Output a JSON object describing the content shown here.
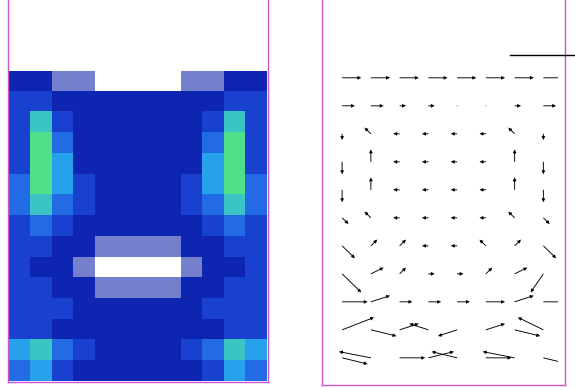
{
  "chart_data": [
    {
      "type": "heatmap",
      "tick_labels": false,
      "cells": [
        [
          2,
          2,
          1,
          1,
          0,
          0,
          0,
          0,
          1,
          1,
          2,
          2
        ],
        [
          3,
          3,
          2,
          2,
          2,
          2,
          2,
          2,
          2,
          2,
          3,
          3
        ],
        [
          3,
          6,
          3,
          2,
          2,
          2,
          2,
          2,
          2,
          3,
          6,
          3
        ],
        [
          3,
          7,
          4,
          2,
          2,
          2,
          2,
          2,
          2,
          4,
          7,
          3
        ],
        [
          3,
          7,
          5,
          2,
          2,
          2,
          2,
          2,
          2,
          5,
          7,
          3
        ],
        [
          4,
          7,
          5,
          3,
          2,
          2,
          2,
          2,
          3,
          5,
          7,
          4
        ],
        [
          4,
          6,
          4,
          3,
          2,
          2,
          2,
          2,
          3,
          4,
          6,
          4
        ],
        [
          3,
          4,
          3,
          2,
          2,
          2,
          2,
          2,
          2,
          3,
          4,
          3
        ],
        [
          3,
          3,
          2,
          2,
          1,
          1,
          1,
          1,
          2,
          2,
          3,
          3
        ],
        [
          3,
          2,
          2,
          1,
          0,
          0,
          0,
          0,
          1,
          2,
          2,
          3
        ],
        [
          3,
          3,
          2,
          2,
          1,
          1,
          1,
          1,
          2,
          2,
          3,
          3
        ],
        [
          3,
          3,
          3,
          2,
          2,
          2,
          2,
          2,
          2,
          3,
          3,
          3
        ],
        [
          3,
          3,
          2,
          2,
          2,
          2,
          2,
          2,
          2,
          2,
          3,
          3
        ],
        [
          5,
          6,
          4,
          3,
          2,
          2,
          2,
          2,
          3,
          4,
          6,
          5
        ],
        [
          4,
          5,
          3,
          2,
          2,
          2,
          2,
          2,
          2,
          3,
          5,
          4
        ]
      ]
    },
    {
      "type": "quiver",
      "tick_labels": false,
      "u": [
        [
          3,
          3,
          3,
          3,
          3,
          3,
          3,
          3
        ],
        [
          2,
          2,
          1,
          1,
          0,
          0,
          1,
          2
        ],
        [
          0,
          -1,
          -1,
          -1,
          -1,
          -1,
          -1,
          0
        ],
        [
          0,
          0,
          -1,
          -1,
          -1,
          -1,
          0,
          0
        ],
        [
          0,
          0,
          -1,
          -1,
          -1,
          -1,
          0,
          0
        ],
        [
          1,
          -1,
          -1,
          -1,
          -1,
          -1,
          -1,
          1
        ],
        [
          2,
          1,
          1,
          -1,
          -1,
          -1,
          1,
          2
        ],
        [
          3,
          2,
          1,
          1,
          1,
          1,
          2,
          -2
        ],
        [
          4,
          3,
          2,
          2,
          2,
          3,
          3,
          4
        ],
        [
          5,
          4,
          3,
          -3,
          -3,
          3,
          4,
          -4
        ],
        [
          4,
          -5,
          4,
          4,
          -4,
          4,
          -5,
          4
        ]
      ],
      "v": [
        [
          0,
          0,
          0,
          0,
          0,
          0,
          0,
          0
        ],
        [
          0,
          0,
          0,
          0,
          0,
          0,
          0,
          0
        ],
        [
          -1,
          1,
          0,
          0,
          0,
          0,
          1,
          -1
        ],
        [
          -2,
          2,
          0,
          0,
          0,
          0,
          2,
          -2
        ],
        [
          -2,
          2,
          0,
          0,
          0,
          0,
          2,
          -2
        ],
        [
          -1,
          1,
          0,
          0,
          0,
          0,
          1,
          -1
        ],
        [
          -2,
          1,
          1,
          0,
          0,
          1,
          1,
          -2
        ],
        [
          -3,
          1,
          1,
          0,
          0,
          1,
          1,
          -3
        ],
        [
          0,
          1,
          0,
          0,
          0,
          0,
          1,
          0
        ],
        [
          2,
          -1,
          1,
          1,
          -1,
          1,
          -1,
          2
        ],
        [
          -1,
          1,
          0,
          1,
          1,
          0,
          1,
          -1
        ]
      ]
    }
  ]
}
